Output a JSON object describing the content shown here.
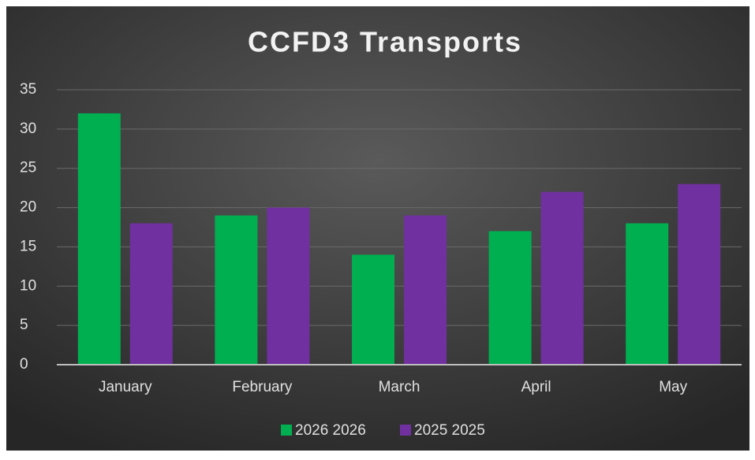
{
  "chart_data": {
    "type": "bar",
    "title": "CCFD3 Transports",
    "categories": [
      "January",
      "February",
      "March",
      "April",
      "May"
    ],
    "series": [
      {
        "name": "2026 2026",
        "color": "#00b050",
        "values": [
          32,
          19,
          14,
          17,
          18
        ]
      },
      {
        "name": "2025 2025",
        "color": "#7030a0",
        "values": [
          18,
          20,
          19,
          22,
          23
        ]
      }
    ],
    "ylim": [
      0,
      35
    ],
    "yticks": [
      0,
      5,
      10,
      15,
      20,
      25,
      30,
      35
    ],
    "grid": true,
    "legend": "bottom"
  }
}
